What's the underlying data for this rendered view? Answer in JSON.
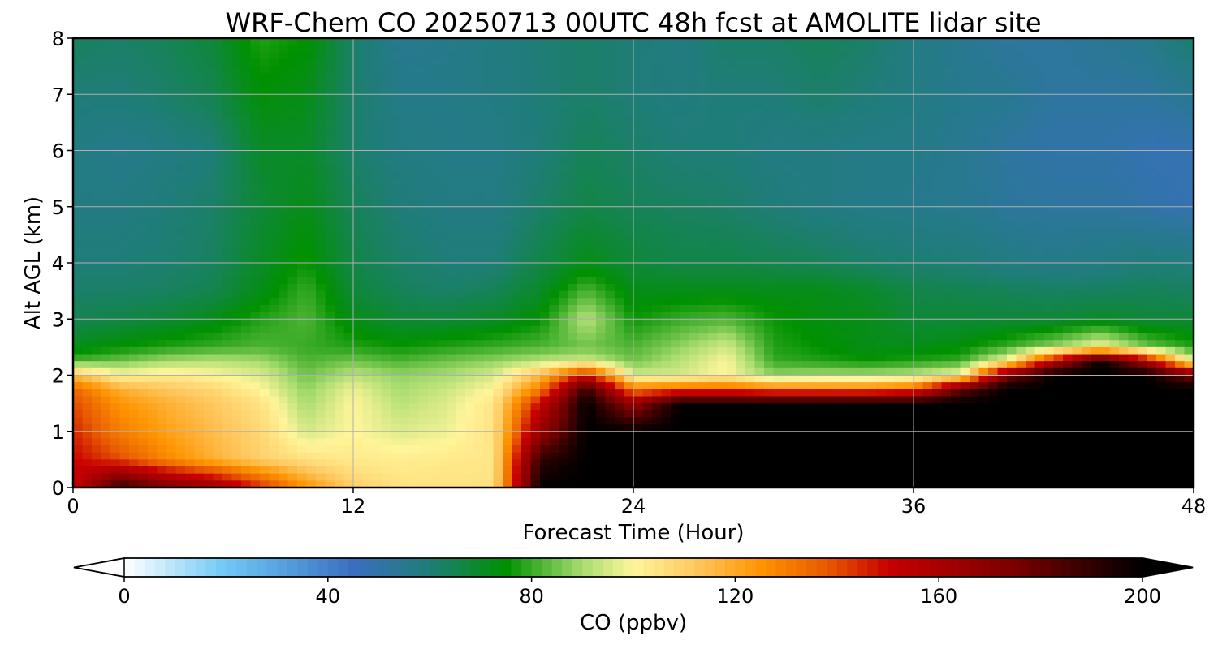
{
  "chart_data": {
    "type": "heatmap",
    "title": "WRF-Chem CO  20250713 00UTC 48h fcst at AMOLITE lidar site",
    "xlabel": "Forecast Time (Hour)",
    "ylabel": "Alt AGL (km)",
    "xlim": [
      0,
      48
    ],
    "ylim": [
      0,
      8
    ],
    "xticks": [
      0,
      12,
      24,
      36,
      48
    ],
    "yticks": [
      0,
      1,
      2,
      3,
      4,
      5,
      6,
      7,
      8
    ],
    "grid": true,
    "colorbar": {
      "label": "CO  (ppbv)",
      "range": [
        0,
        200
      ],
      "ticks": [
        0,
        40,
        80,
        120,
        160,
        200
      ],
      "extend": "both",
      "stops": [
        {
          "value": 0,
          "color": "#ffffff"
        },
        {
          "value": 20,
          "color": "#6fc8f5"
        },
        {
          "value": 45,
          "color": "#3a6fc0"
        },
        {
          "value": 60,
          "color": "#1f7d78"
        },
        {
          "value": 75,
          "color": "#009100"
        },
        {
          "value": 90,
          "color": "#a8dc70"
        },
        {
          "value": 100,
          "color": "#fff59a"
        },
        {
          "value": 112,
          "color": "#ffc860"
        },
        {
          "value": 125,
          "color": "#ff9400"
        },
        {
          "value": 138,
          "color": "#e85a00"
        },
        {
          "value": 150,
          "color": "#c80000"
        },
        {
          "value": 175,
          "color": "#7a0000"
        },
        {
          "value": 200,
          "color": "#000000"
        }
      ]
    },
    "x": [
      0,
      2,
      4,
      6,
      8,
      10,
      12,
      14,
      16,
      18,
      20,
      22,
      24,
      26,
      28,
      30,
      32,
      34,
      36,
      38,
      40,
      42,
      44,
      46,
      48
    ],
    "y": [
      0,
      0.5,
      1,
      1.5,
      1.75,
      2,
      2.25,
      2.5,
      3,
      3.5,
      4,
      5,
      6,
      7,
      8
    ],
    "z": [
      [
        150,
        190,
        175,
        165,
        145,
        125,
        110,
        105,
        105,
        105,
        200,
        200,
        200,
        200,
        200,
        200,
        200,
        200,
        200,
        200,
        200,
        200,
        200,
        200,
        200
      ],
      [
        150,
        140,
        128,
        118,
        110,
        105,
        103,
        102,
        103,
        104,
        190,
        200,
        200,
        200,
        200,
        200,
        200,
        200,
        200,
        200,
        200,
        200,
        200,
        200,
        200
      ],
      [
        145,
        130,
        122,
        115,
        108,
        95,
        100,
        96,
        98,
        105,
        165,
        200,
        200,
        200,
        200,
        200,
        200,
        200,
        200,
        200,
        200,
        200,
        200,
        200,
        200
      ],
      [
        140,
        125,
        118,
        112,
        105,
        90,
        100,
        92,
        96,
        104,
        150,
        200,
        165,
        200,
        200,
        200,
        200,
        200,
        200,
        200,
        200,
        200,
        200,
        200,
        200
      ],
      [
        135,
        118,
        112,
        108,
        100,
        88,
        98,
        90,
        94,
        100,
        130,
        190,
        130,
        135,
        135,
        130,
        130,
        130,
        135,
        180,
        200,
        200,
        200,
        200,
        200
      ],
      [
        115,
        100,
        103,
        100,
        96,
        85,
        92,
        88,
        90,
        95,
        115,
        150,
        95,
        95,
        100,
        88,
        90,
        90,
        92,
        100,
        175,
        200,
        200,
        200,
        175
      ],
      [
        82,
        85,
        90,
        92,
        90,
        82,
        85,
        82,
        85,
        88,
        92,
        95,
        85,
        92,
        100,
        80,
        78,
        76,
        78,
        80,
        100,
        155,
        200,
        160,
        95
      ],
      [
        72,
        75,
        78,
        80,
        82,
        80,
        78,
        76,
        78,
        80,
        82,
        85,
        82,
        88,
        95,
        78,
        75,
        72,
        72,
        74,
        80,
        88,
        100,
        85,
        78
      ],
      [
        65,
        66,
        68,
        72,
        78,
        82,
        72,
        68,
        68,
        70,
        75,
        92,
        76,
        80,
        82,
        76,
        73,
        72,
        68,
        68,
        68,
        68,
        70,
        68,
        68
      ],
      [
        62,
        62,
        63,
        65,
        72,
        80,
        68,
        64,
        62,
        64,
        70,
        82,
        72,
        72,
        72,
        72,
        72,
        70,
        66,
        65,
        64,
        63,
        63,
        64,
        63
      ],
      [
        60,
        60,
        61,
        63,
        70,
        76,
        66,
        62,
        60,
        60,
        66,
        72,
        68,
        66,
        66,
        65,
        64,
        62,
        61,
        60,
        58,
        57,
        58,
        60,
        59
      ],
      [
        58,
        58,
        60,
        62,
        68,
        72,
        64,
        60,
        58,
        58,
        62,
        66,
        64,
        63,
        62,
        60,
        58,
        57,
        56,
        55,
        53,
        52,
        52,
        50,
        48
      ],
      [
        58,
        56,
        58,
        60,
        70,
        70,
        62,
        58,
        57,
        57,
        60,
        64,
        62,
        60,
        60,
        58,
        58,
        57,
        57,
        55,
        52,
        50,
        50,
        48,
        48
      ],
      [
        60,
        60,
        62,
        65,
        74,
        72,
        62,
        57,
        57,
        58,
        60,
        62,
        60,
        59,
        60,
        60,
        62,
        60,
        58,
        56,
        55,
        52,
        52,
        52,
        55
      ],
      [
        64,
        62,
        64,
        68,
        78,
        75,
        62,
        55,
        56,
        58,
        60,
        62,
        60,
        58,
        62,
        62,
        64,
        62,
        58,
        55,
        52,
        52,
        54,
        56,
        62
      ]
    ]
  }
}
